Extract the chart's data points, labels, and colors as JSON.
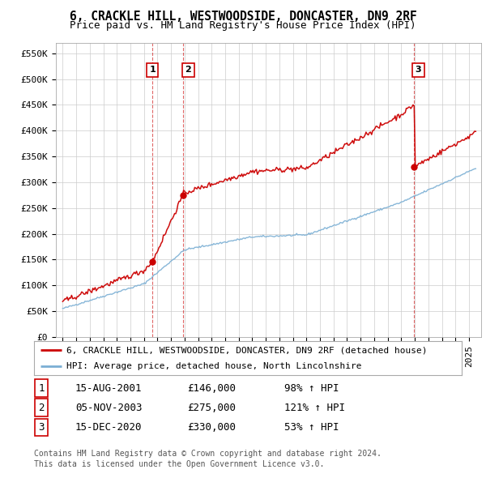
{
  "title": "6, CRACKLE HILL, WESTWOODSIDE, DONCASTER, DN9 2RF",
  "subtitle": "Price paid vs. HM Land Registry's House Price Index (HPI)",
  "legend_red": "6, CRACKLE HILL, WESTWOODSIDE, DONCASTER, DN9 2RF (detached house)",
  "legend_blue": "HPI: Average price, detached house, North Lincolnshire",
  "transactions": [
    {
      "num": "1",
      "date": "15-AUG-2001",
      "price": "£146,000",
      "pct": "98% ↑ HPI",
      "year": 2001.625,
      "price_val": 146000
    },
    {
      "num": "2",
      "date": "05-NOV-2003",
      "price": "£275,000",
      "pct": "121% ↑ HPI",
      "year": 2003.875,
      "price_val": 275000
    },
    {
      "num": "3",
      "date": "15-DEC-2020",
      "price": "£330,000",
      "pct": "53% ↑ HPI",
      "year": 2020.958,
      "price_val": 330000
    }
  ],
  "footnote1": "Contains HM Land Registry data © Crown copyright and database right 2024.",
  "footnote2": "This data is licensed under the Open Government Licence v3.0.",
  "yticks": [
    0,
    50000,
    100000,
    150000,
    200000,
    250000,
    300000,
    350000,
    400000,
    450000,
    500000,
    550000
  ],
  "ytick_labels": [
    "£0",
    "£50K",
    "£100K",
    "£150K",
    "£200K",
    "£250K",
    "£300K",
    "£350K",
    "£400K",
    "£450K",
    "£500K",
    "£550K"
  ],
  "bg_color": "#ffffff",
  "plot_bg_color": "#ffffff",
  "grid_color": "#cccccc",
  "red_color": "#cc0000",
  "blue_color": "#7bafd4",
  "title_fontsize": 10.5,
  "subtitle_fontsize": 9,
  "tick_fontsize": 8,
  "legend_fontsize": 8,
  "footnote_fontsize": 7,
  "table_fontsize": 9
}
